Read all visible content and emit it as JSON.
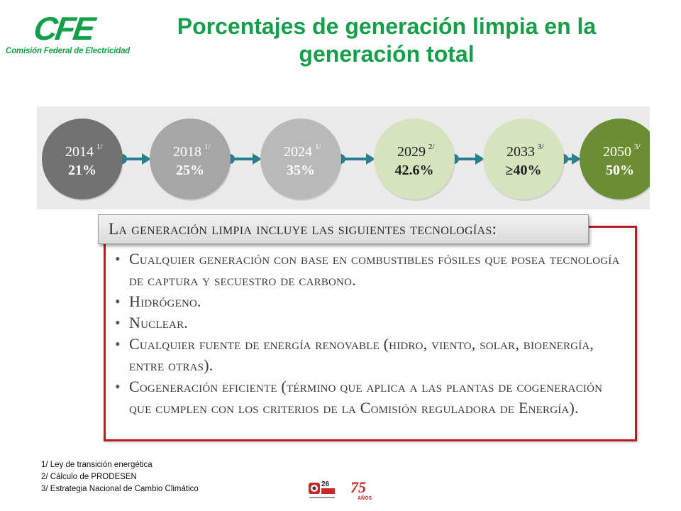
{
  "header": {
    "logo_text": "CFE",
    "logo_subtitle": "Comisión Federal de Electricidad",
    "title": "Porcentajes de generación limpia en la generación total"
  },
  "timeline": [
    {
      "year": "2014",
      "note": "1/",
      "value": "21%",
      "color": "#727272"
    },
    {
      "year": "2018",
      "note": "1/",
      "value": "25%",
      "color": "#a6a6a6"
    },
    {
      "year": "2024",
      "note": "1/",
      "value": "35%",
      "color": "#b9b9b9"
    },
    {
      "year": "2029",
      "note": "2/",
      "value": "42.6%",
      "color": "#d5e3bf"
    },
    {
      "year": "2033",
      "note": "3/",
      "value": "≥40%",
      "color": "#d5e3bf"
    },
    {
      "year": "2050",
      "note": "3/",
      "value": "50%",
      "color": "#6b8e34"
    }
  ],
  "connector_color": "#2a7f8f",
  "technologies": {
    "heading": "La generación limpia incluye las siguientes tecnologías:",
    "items": [
      "Cualquier generación con base en combustibles fósiles que posea tecnología de captura y secuestro de carbono.",
      "Hidrógeno.",
      "Nuclear.",
      "Cualquier fuente de energía renovable (hidro, viento, solar, bioenergía, entre otras).",
      "Cogeneración eficiente (término que aplica a las plantas de cogeneración que cumplen con los criterios de la Comisión reguladora de Energía)."
    ]
  },
  "footnotes": [
    "1/ Ley de transición energética",
    "2/ Cálculo de PRODESEN",
    "3/ Estrategia Nacional de Cambio Climático"
  ],
  "emblems": {
    "first_number": "26",
    "second_number": "75",
    "second_word": "AÑOS"
  }
}
